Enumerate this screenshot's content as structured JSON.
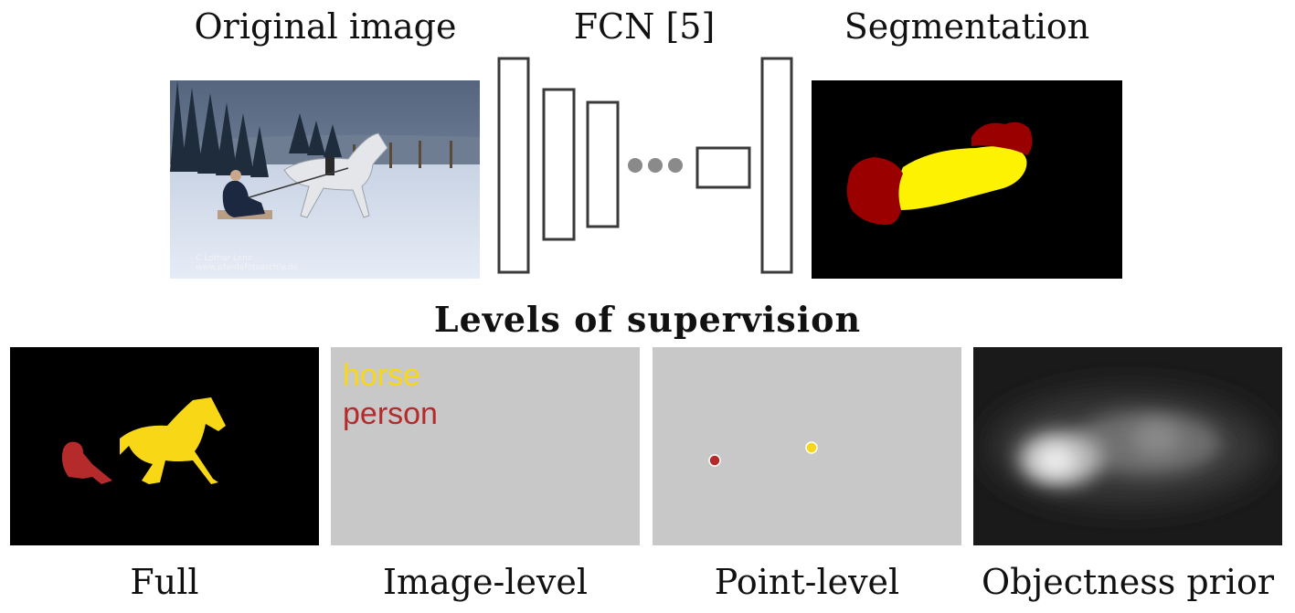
{
  "header": {
    "original_label": "Original image",
    "fcn_label": "FCN [5]",
    "segmentation_label": "Segmentation"
  },
  "photo": {
    "watermark_line1": "C    Lothar Lenz",
    "watermark_line2": "www.pferdefotoarchiv.de"
  },
  "section_title": "Levels of supervision",
  "image_level": {
    "tags": [
      "horse",
      "person"
    ]
  },
  "captions": {
    "full": "Full",
    "image_level": "Image-level",
    "point_level": "Point-level",
    "objectness": "Objectness prior"
  },
  "colors": {
    "horse_yellow": "#f7d716",
    "person_red": "#b52a2a",
    "seg_yellow": "#fdf201",
    "seg_red": "#9b0000",
    "gray_panel": "#c8c8c8",
    "network_stroke": "#3a3a3a",
    "dots": "#8a8a8a"
  }
}
